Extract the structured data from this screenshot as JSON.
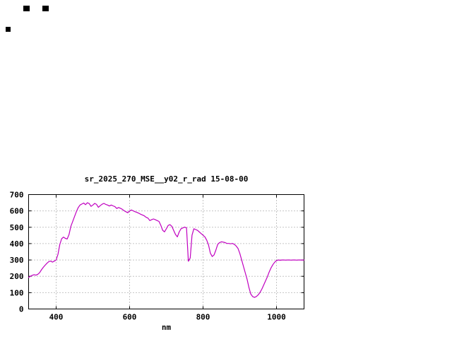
{
  "chart_data": {
    "type": "line",
    "title": "sr_2025_270_MSE__y02_r_rad 15-08-00",
    "xlabel": "nm",
    "ylabel": "",
    "xlim": [
      325,
      1075
    ],
    "ylim": [
      0,
      700
    ],
    "xticks": [
      400,
      600,
      800,
      1000
    ],
    "yticks": [
      0,
      100,
      200,
      300,
      400,
      500,
      600,
      700
    ],
    "grid": true,
    "legend": "none",
    "line_color": "#c000c0",
    "series": [
      {
        "name": "sr_2025_270_MSE__y02_r_rad",
        "points": [
          [
            325,
            193
          ],
          [
            330,
            200
          ],
          [
            335,
            206
          ],
          [
            340,
            210
          ],
          [
            345,
            207
          ],
          [
            350,
            212
          ],
          [
            355,
            222
          ],
          [
            360,
            240
          ],
          [
            365,
            255
          ],
          [
            370,
            268
          ],
          [
            375,
            280
          ],
          [
            380,
            290
          ],
          [
            385,
            293
          ],
          [
            390,
            287
          ],
          [
            395,
            293
          ],
          [
            400,
            300
          ],
          [
            405,
            335
          ],
          [
            410,
            395
          ],
          [
            415,
            430
          ],
          [
            420,
            440
          ],
          [
            425,
            432
          ],
          [
            430,
            428
          ],
          [
            435,
            455
          ],
          [
            440,
            505
          ],
          [
            445,
            535
          ],
          [
            450,
            565
          ],
          [
            455,
            595
          ],
          [
            460,
            620
          ],
          [
            465,
            636
          ],
          [
            470,
            642
          ],
          [
            475,
            648
          ],
          [
            480,
            638
          ],
          [
            485,
            650
          ],
          [
            490,
            645
          ],
          [
            495,
            628
          ],
          [
            500,
            636
          ],
          [
            505,
            646
          ],
          [
            510,
            640
          ],
          [
            515,
            622
          ],
          [
            520,
            632
          ],
          [
            525,
            641
          ],
          [
            530,
            646
          ],
          [
            535,
            640
          ],
          [
            540,
            636
          ],
          [
            545,
            630
          ],
          [
            550,
            636
          ],
          [
            555,
            631
          ],
          [
            560,
            626
          ],
          [
            565,
            615
          ],
          [
            570,
            621
          ],
          [
            575,
            616
          ],
          [
            580,
            610
          ],
          [
            585,
            601
          ],
          [
            590,
            595
          ],
          [
            595,
            589
          ],
          [
            600,
            600
          ],
          [
            605,
            606
          ],
          [
            610,
            600
          ],
          [
            615,
            595
          ],
          [
            620,
            591
          ],
          [
            625,
            586
          ],
          [
            630,
            580
          ],
          [
            635,
            575
          ],
          [
            640,
            570
          ],
          [
            645,
            561
          ],
          [
            650,
            556
          ],
          [
            655,
            541
          ],
          [
            660,
            546
          ],
          [
            665,
            551
          ],
          [
            670,
            546
          ],
          [
            675,
            541
          ],
          [
            680,
            536
          ],
          [
            685,
            512
          ],
          [
            690,
            482
          ],
          [
            695,
            472
          ],
          [
            700,
            491
          ],
          [
            705,
            511
          ],
          [
            710,
            516
          ],
          [
            715,
            506
          ],
          [
            720,
            481
          ],
          [
            725,
            456
          ],
          [
            730,
            441
          ],
          [
            735,
            471
          ],
          [
            740,
            491
          ],
          [
            745,
            496
          ],
          [
            750,
            501
          ],
          [
            755,
            496
          ],
          [
            760,
            292
          ],
          [
            765,
            312
          ],
          [
            770,
            452
          ],
          [
            775,
            491
          ],
          [
            780,
            486
          ],
          [
            785,
            481
          ],
          [
            790,
            471
          ],
          [
            795,
            461
          ],
          [
            800,
            451
          ],
          [
            805,
            441
          ],
          [
            810,
            421
          ],
          [
            815,
            391
          ],
          [
            820,
            341
          ],
          [
            825,
            321
          ],
          [
            830,
            331
          ],
          [
            835,
            361
          ],
          [
            840,
            396
          ],
          [
            845,
            406
          ],
          [
            850,
            411
          ],
          [
            855,
            409
          ],
          [
            860,
            406
          ],
          [
            865,
            401
          ],
          [
            870,
            401
          ],
          [
            875,
            399
          ],
          [
            880,
            401
          ],
          [
            885,
            396
          ],
          [
            890,
            386
          ],
          [
            895,
            371
          ],
          [
            900,
            341
          ],
          [
            905,
            301
          ],
          [
            910,
            261
          ],
          [
            915,
            221
          ],
          [
            920,
            181
          ],
          [
            925,
            131
          ],
          [
            930,
            91
          ],
          [
            935,
            76
          ],
          [
            940,
            71
          ],
          [
            945,
            76
          ],
          [
            950,
            86
          ],
          [
            955,
            101
          ],
          [
            960,
            121
          ],
          [
            965,
            146
          ],
          [
            970,
            171
          ],
          [
            975,
            196
          ],
          [
            980,
            226
          ],
          [
            985,
            251
          ],
          [
            990,
            271
          ],
          [
            995,
            286
          ],
          [
            1000,
            296
          ],
          [
            1005,
            300
          ],
          [
            1010,
            298
          ],
          [
            1015,
            300
          ],
          [
            1020,
            300
          ],
          [
            1025,
            299
          ],
          [
            1030,
            300
          ],
          [
            1035,
            300
          ],
          [
            1040,
            299
          ],
          [
            1045,
            300
          ],
          [
            1050,
            300
          ],
          [
            1055,
            299
          ],
          [
            1060,
            300
          ],
          [
            1065,
            300
          ],
          [
            1070,
            299
          ],
          [
            1075,
            300
          ]
        ]
      }
    ]
  }
}
